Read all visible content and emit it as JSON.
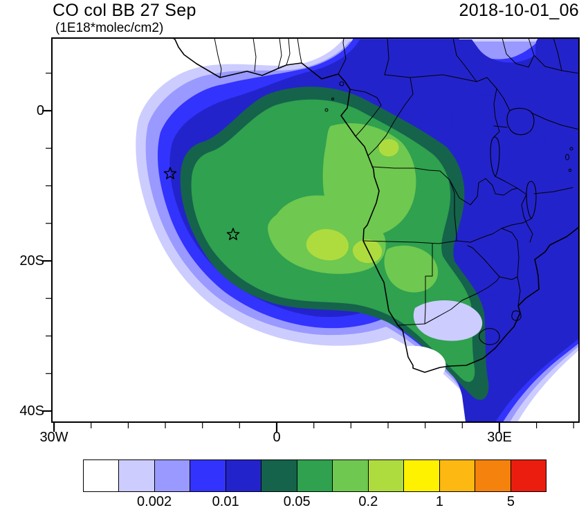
{
  "header": {
    "title": "CO col BB 27 Sep",
    "subtitle": "(1E18*molec/cm2)",
    "date": "2018-10-01_06"
  },
  "axes": {
    "y_ticks": [
      "0",
      "20S",
      "40S"
    ],
    "x_ticks": [
      "30W",
      "0",
      "30E"
    ]
  },
  "colorbar": {
    "labels": [
      "0.002",
      "0.01",
      "0.05",
      "0.2",
      "1",
      "5"
    ],
    "colors": [
      "#FFFFFF",
      "#CCCCFF",
      "#9999FF",
      "#3333FE",
      "#2323CB",
      "#15634B",
      "#2FA14F",
      "#6FC84F",
      "#AEDC3E",
      "#FFF200",
      "#FDB912",
      "#F5820D",
      "#EB1D0F"
    ]
  },
  "chart_data": {
    "type": "heatmap",
    "title": "CO col BB 27 Sep",
    "units": "1E18*molec/cm2",
    "time_label": "2018-10-01_06",
    "region": "Africa and southeast Atlantic",
    "x_ticks": [
      "30W",
      "0",
      "30E"
    ],
    "y_ticks": [
      "0",
      "20S",
      "40S"
    ],
    "lon_range_deg": [
      -30.3,
      40.8
    ],
    "lat_range_deg": [
      9.7,
      -41.5
    ],
    "colorbar": {
      "n_cells": 13,
      "tick_labels": [
        "0.002",
        "0.01",
        "0.05",
        "0.2",
        "1",
        "5"
      ],
      "tick_values": [
        0.002,
        0.01,
        0.05,
        0.2,
        1,
        5
      ],
      "colors": [
        "#FFFFFF",
        "#CCCCFF",
        "#9999FF",
        "#3333FE",
        "#2323CB",
        "#15634B",
        "#2FA14F",
        "#6FC84F",
        "#AEDC3E",
        "#FFF200",
        "#FDB912",
        "#F5820D",
        "#EB1D0F"
      ]
    },
    "markers": [
      {
        "shape": "star",
        "lon_deg": -14.4,
        "lat_deg": -8.4
      },
      {
        "shape": "star",
        "lon_deg": -5.9,
        "lat_deg": -16.5
      }
    ],
    "features": [
      "Large comma-shaped biomass-burning CO plume arcing over the SE Atlantic from ~5N,20W down to ~30S",
      "Highest column values (yellow-green core, ~0.2-1) off the Angola coast near 10W-5E, 12-20S",
      "Elevated values (green, ~0.05-0.2) over central/southern Africa (Congo, Angola, Zambia)",
      "Secondary blue enhancements (~0.01-0.05) over East Africa, Zimbabwe/Mozambique and top-right corner",
      "Plume tongue crossing the east coast near Mozambique/KwaZulu-Natal toward the bottom edge"
    ]
  }
}
